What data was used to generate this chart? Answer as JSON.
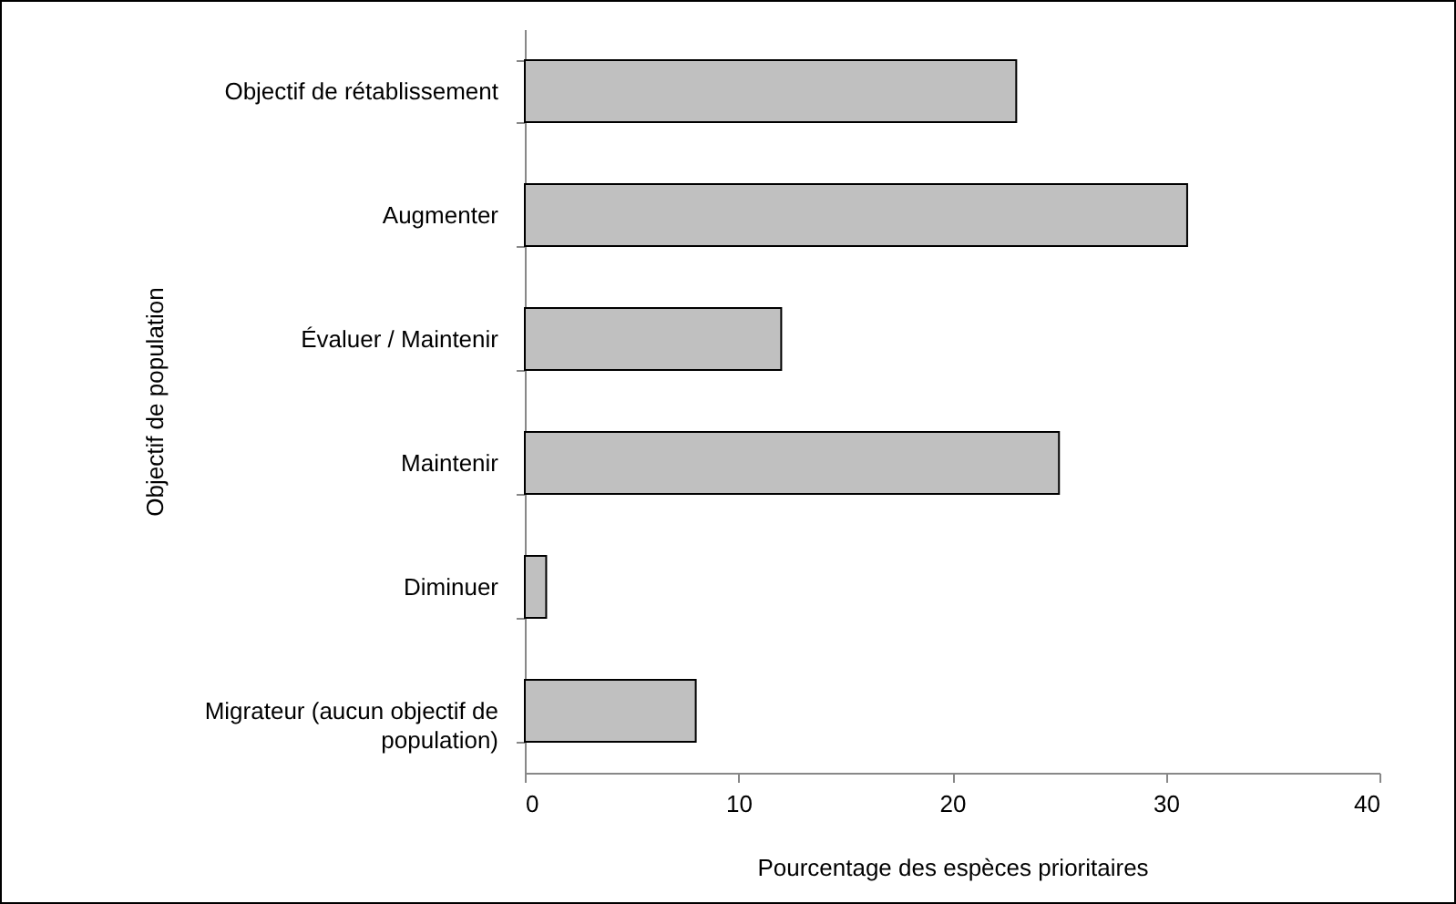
{
  "chart_data": {
    "type": "bar",
    "orientation": "horizontal",
    "xlabel": "Pourcentage des espèces prioritaires",
    "ylabel": "Objectif de population",
    "categories": [
      "Objectif de rétablissement",
      "Augmenter",
      "Évaluer / Maintenir",
      "Maintenir",
      "Diminuer",
      "Migrateur (aucun objectif de population)"
    ],
    "values": [
      23,
      31,
      12,
      25,
      1,
      8
    ],
    "color": "#c0c0c0",
    "xlim": [
      0,
      40
    ],
    "xticks": [
      0,
      10,
      20,
      30,
      40
    ],
    "grid": false
  }
}
